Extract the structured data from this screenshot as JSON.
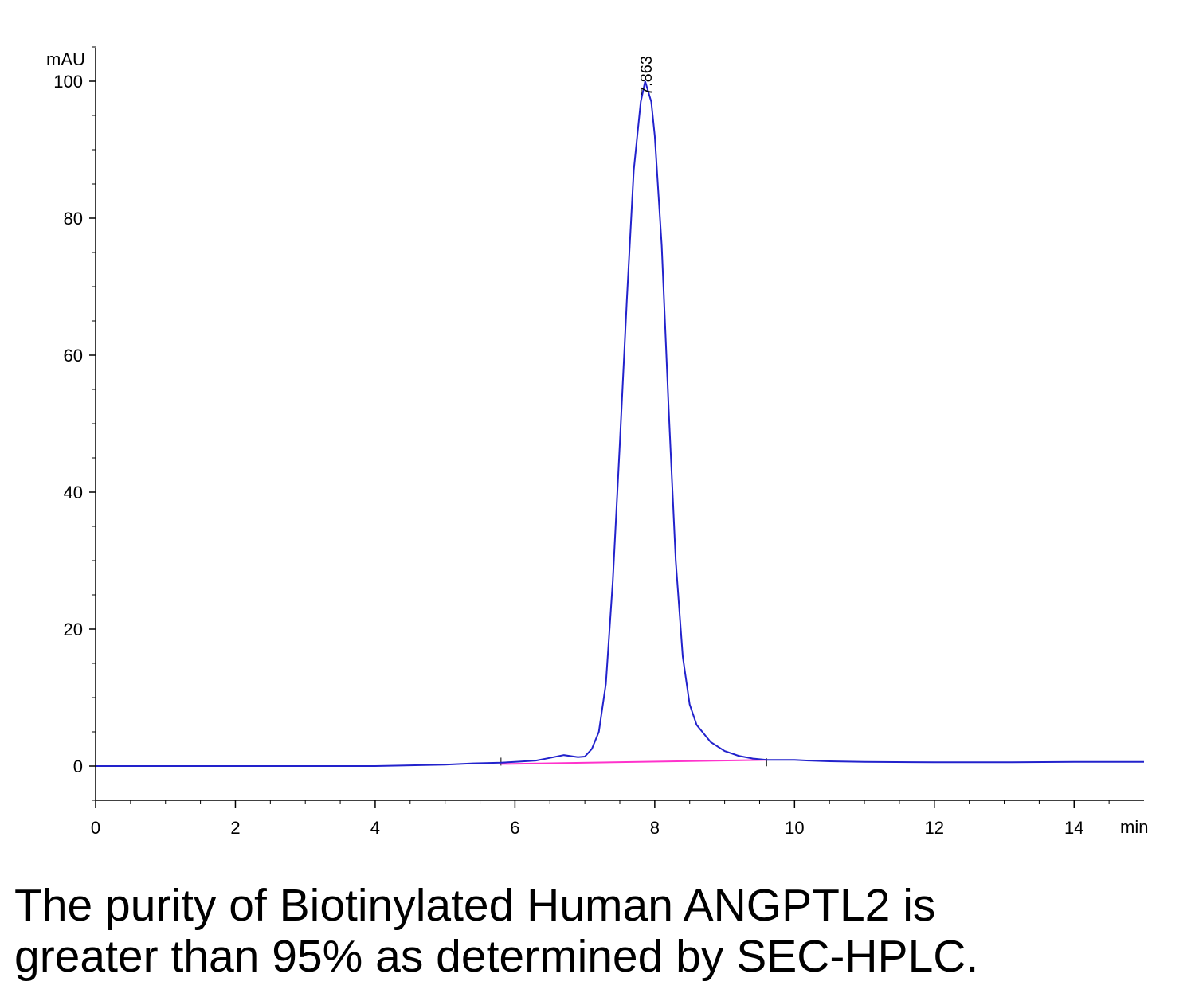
{
  "chart_data": {
    "type": "line",
    "ylabel": "mAU",
    "xlabel": "min",
    "xlim": [
      0,
      15
    ],
    "ylim": [
      -5,
      105
    ],
    "x_ticks": [
      0,
      2,
      4,
      6,
      8,
      10,
      12,
      14
    ],
    "y_ticks": [
      0,
      20,
      40,
      60,
      80,
      100
    ],
    "peak_label": "7.863",
    "peak_time": 7.863,
    "series": [
      {
        "color": "#2222cc",
        "x": [
          0,
          1,
          2,
          3,
          4,
          4.5,
          5,
          5.4,
          5.8,
          6.0,
          6.3,
          6.5,
          6.7,
          6.9,
          7.0,
          7.1,
          7.2,
          7.3,
          7.4,
          7.5,
          7.6,
          7.7,
          7.8,
          7.863,
          7.95,
          8.0,
          8.1,
          8.2,
          8.3,
          8.4,
          8.5,
          8.6,
          8.8,
          9.0,
          9.2,
          9.4,
          9.6,
          9.8,
          10.0,
          10.2,
          10.5,
          11,
          12,
          13,
          14,
          15
        ],
        "y": [
          0,
          0,
          0,
          0,
          0,
          0.1,
          0.2,
          0.4,
          0.5,
          0.6,
          0.8,
          1.2,
          1.6,
          1.3,
          1.4,
          2.5,
          5.0,
          12.0,
          27.0,
          47.0,
          68.0,
          87.0,
          97.0,
          100.0,
          97.0,
          92.0,
          76.0,
          52.0,
          30.0,
          16.0,
          9.0,
          6.0,
          3.5,
          2.2,
          1.5,
          1.1,
          0.9,
          0.9,
          0.9,
          0.8,
          0.7,
          0.6,
          0.55,
          0.55,
          0.6,
          0.6
        ]
      }
    ],
    "baseline": {
      "color": "#ff33cc",
      "x": [
        5.8,
        9.6
      ],
      "y": [
        0.3,
        0.9
      ]
    }
  },
  "caption_line1": "The purity of Biotinylated Human ANGPTL2 is",
  "caption_line2": "greater than 95% as determined by SEC-HPLC."
}
